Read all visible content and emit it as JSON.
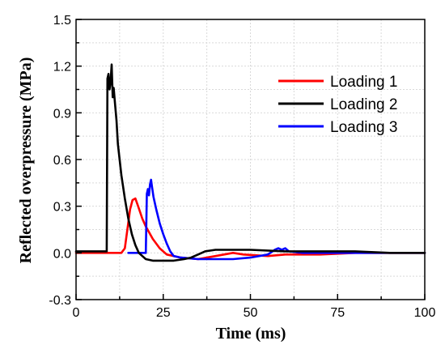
{
  "chart_data": {
    "type": "line",
    "xlabel": "Time (ms)",
    "ylabel": "Reflected overpressure (MPa)",
    "xlim": [
      0,
      100
    ],
    "ylim": [
      -0.3,
      1.5
    ],
    "x_ticks": [
      0,
      25,
      50,
      75,
      100
    ],
    "y_ticks": [
      -0.3,
      0.0,
      0.3,
      0.6,
      0.9,
      1.2,
      1.5
    ],
    "y_tick_labels": [
      "-0.3",
      "0.0",
      "0.3",
      "0.6",
      "0.9",
      "1.2",
      "1.5"
    ],
    "grid": true,
    "legend_position": "top-right",
    "series": [
      {
        "name": "Loading 1",
        "color": "#ff0000",
        "points": [
          [
            0,
            0.0
          ],
          [
            13,
            0.0
          ],
          [
            14,
            0.03
          ],
          [
            15.5,
            0.28
          ],
          [
            16.2,
            0.34
          ],
          [
            17,
            0.35
          ],
          [
            17.8,
            0.3
          ],
          [
            19,
            0.22
          ],
          [
            20,
            0.17
          ],
          [
            21,
            0.13
          ],
          [
            22,
            0.09
          ],
          [
            24,
            0.03
          ],
          [
            26,
            -0.01
          ],
          [
            30,
            -0.03
          ],
          [
            35,
            -0.04
          ],
          [
            40,
            -0.02
          ],
          [
            45,
            0.0
          ],
          [
            48,
            -0.01
          ],
          [
            55,
            -0.02
          ],
          [
            60,
            -0.01
          ],
          [
            70,
            -0.01
          ],
          [
            80,
            0.0
          ],
          [
            90,
            0.0
          ],
          [
            100,
            0.0
          ]
        ]
      },
      {
        "name": "Loading 2",
        "color": "#000000",
        "points": [
          [
            0,
            0.01
          ],
          [
            8.8,
            0.01
          ],
          [
            9.0,
            1.12
          ],
          [
            9.3,
            1.15
          ],
          [
            9.6,
            1.05
          ],
          [
            9.9,
            1.1
          ],
          [
            10.2,
            1.21
          ],
          [
            10.5,
            1.0
          ],
          [
            10.8,
            1.06
          ],
          [
            11.2,
            0.95
          ],
          [
            11.6,
            0.85
          ],
          [
            12,
            0.7
          ],
          [
            13,
            0.5
          ],
          [
            14,
            0.35
          ],
          [
            15,
            0.22
          ],
          [
            16,
            0.12
          ],
          [
            17,
            0.05
          ],
          [
            18,
            0.0
          ],
          [
            19,
            -0.02
          ],
          [
            20,
            -0.04
          ],
          [
            22,
            -0.05
          ],
          [
            25,
            -0.05
          ],
          [
            28,
            -0.05
          ],
          [
            31,
            -0.04
          ],
          [
            33,
            -0.03
          ],
          [
            35,
            -0.01
          ],
          [
            37,
            0.01
          ],
          [
            40,
            0.02
          ],
          [
            50,
            0.02
          ],
          [
            60,
            0.01
          ],
          [
            70,
            0.01
          ],
          [
            80,
            0.01
          ],
          [
            90,
            0.0
          ],
          [
            100,
            0.0
          ]
        ]
      },
      {
        "name": "Loading 3",
        "color": "#0000ff",
        "points": [
          [
            15,
            0.0
          ],
          [
            20,
            0.0
          ],
          [
            20.3,
            0.38
          ],
          [
            20.6,
            0.41
          ],
          [
            20.9,
            0.37
          ],
          [
            21.2,
            0.44
          ],
          [
            21.5,
            0.47
          ],
          [
            21.8,
            0.42
          ],
          [
            22.2,
            0.36
          ],
          [
            23,
            0.28
          ],
          [
            24,
            0.19
          ],
          [
            25,
            0.12
          ],
          [
            26,
            0.06
          ],
          [
            27,
            0.01
          ],
          [
            28,
            -0.02
          ],
          [
            30,
            -0.03
          ],
          [
            35,
            -0.04
          ],
          [
            40,
            -0.04
          ],
          [
            45,
            -0.04
          ],
          [
            50,
            -0.03
          ],
          [
            55,
            -0.01
          ],
          [
            57,
            0.02
          ],
          [
            58,
            0.03
          ],
          [
            59,
            0.02
          ],
          [
            60,
            0.03
          ],
          [
            61,
            0.01
          ],
          [
            65,
            0.0
          ],
          [
            70,
            0.0
          ],
          [
            80,
            0.0
          ],
          [
            90,
            0.0
          ],
          [
            100,
            0.0
          ]
        ]
      }
    ]
  }
}
